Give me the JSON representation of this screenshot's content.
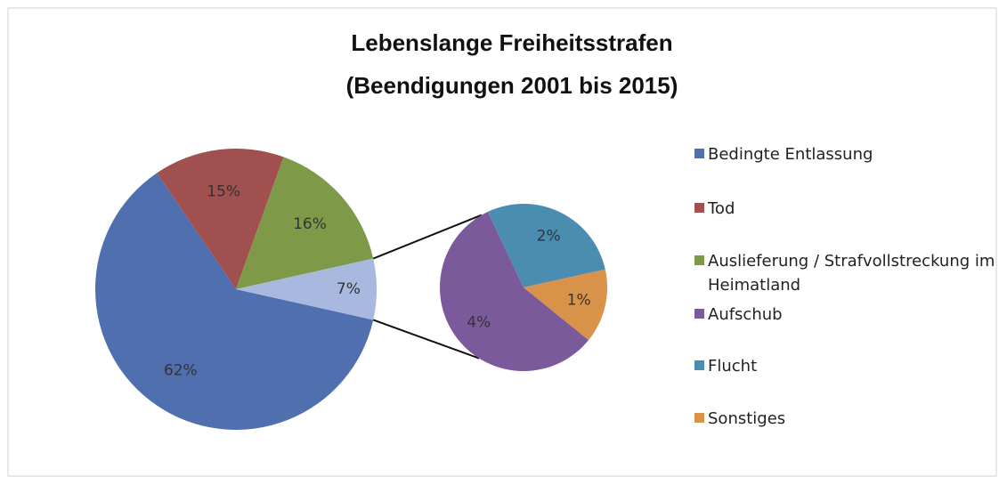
{
  "chart_data": {
    "type": "pie-of-pie",
    "title": "Lebenslange Freiheitsstrafen",
    "subtitle": "(Beendigungen 2001 bis 2015)",
    "categories": [
      "Bedingte Entlassung",
      "Tod",
      "Auslieferung / Strafvollstreckung im Heimatland",
      "Aufschub",
      "Flucht",
      "Sonstiges"
    ],
    "values": [
      62,
      15,
      16,
      4,
      2,
      1
    ],
    "value_labels": [
      "62%",
      "15%",
      "16%",
      "4%",
      "2%",
      "1%"
    ],
    "colors": [
      "#4f6fae",
      "#a0504f",
      "#7e9a48",
      "#7a5a9a",
      "#4a8db0",
      "#d8924a"
    ],
    "secondary_count": 3,
    "other": {
      "value": 7,
      "value_label": "7%",
      "color": "#a8b8de"
    },
    "legend": "right"
  }
}
